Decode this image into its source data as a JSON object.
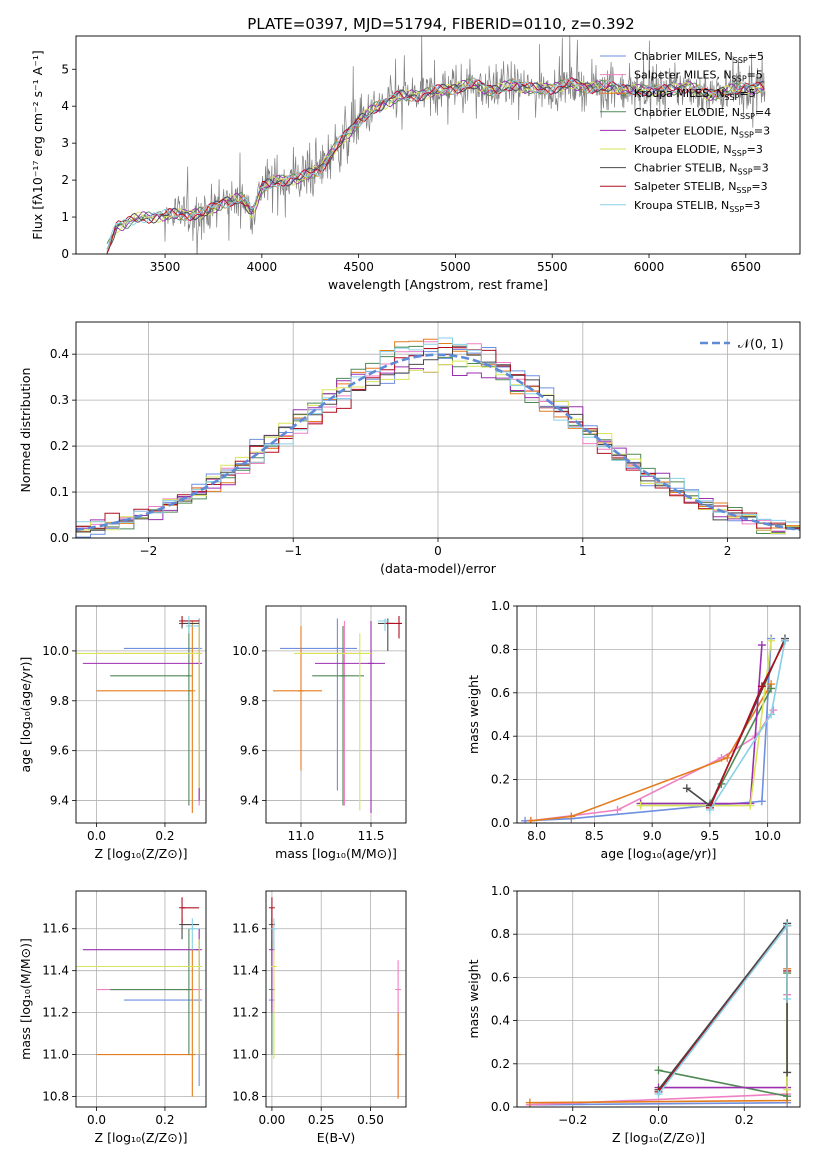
{
  "figure_title": "PLATE=0397, MJD=51794, FIBERID=0110, z=0.392",
  "colors": {
    "Chabrier MILES": "#6f8fe0",
    "Salpeter MILES": "#f07fc4",
    "Kroupa MILES": "#e57c1c",
    "Chabrier ELODIE": "#4f8a55",
    "Salpeter ELODIE": "#9b2fb0",
    "Kroupa ELODIE": "#d9e35a",
    "Chabrier STELIB": "#4a4a4a",
    "Salpeter STELIB": "#b01020",
    "Kroupa STELIB": "#88d0e6",
    "normal": "#5e8ad6",
    "data": "#808080"
  },
  "chart_data": [
    {
      "id": "spectrum",
      "type": "line",
      "xlabel": "wavelength [Angstrom, rest frame]",
      "ylabel": "Flux [fλ10⁻¹⁷ erg cm⁻² s⁻¹ A⁻¹]",
      "xlim": [
        3040,
        6780
      ],
      "ylim": [
        0,
        5.9
      ],
      "xticks": [
        "3500",
        "4000",
        "4500",
        "5000",
        "5500",
        "6000",
        "6500"
      ],
      "yticks": [
        "0",
        "1",
        "2",
        "3",
        "4",
        "5"
      ],
      "legend_position": "upper-right",
      "legend": [
        {
          "label": "Chabrier MILES, N",
          "sub": "SSP",
          "suffix": "=5"
        },
        {
          "label": "Salpeter MILES, N",
          "sub": "SSP",
          "suffix": "=5"
        },
        {
          "label": "Kroupa MILES, N",
          "sub": "SSP",
          "suffix": "=5"
        },
        {
          "label": "Chabrier ELODIE, N",
          "sub": "SSP",
          "suffix": "=4"
        },
        {
          "label": "Salpeter ELODIE, N",
          "sub": "SSP",
          "suffix": "=3"
        },
        {
          "label": "Kroupa ELODIE, N",
          "sub": "SSP",
          "suffix": "=3"
        },
        {
          "label": "Chabrier STELIB, N",
          "sub": "SSP",
          "suffix": "=3"
        },
        {
          "label": "Salpeter STELIB, N",
          "sub": "SSP",
          "suffix": "=3"
        },
        {
          "label": "Kroupa STELIB, N",
          "sub": "SSP",
          "suffix": "=3"
        }
      ],
      "continuum": [
        [
          3200,
          0.1
        ],
        [
          3250,
          0.75
        ],
        [
          3350,
          0.95
        ],
        [
          3500,
          1.05
        ],
        [
          3700,
          1.1
        ],
        [
          3800,
          1.4
        ],
        [
          3900,
          1.5
        ],
        [
          3950,
          1.1
        ],
        [
          4000,
          1.8
        ],
        [
          4100,
          2.0
        ],
        [
          4200,
          2.05
        ],
        [
          4300,
          2.3
        ],
        [
          4400,
          3.0
        ],
        [
          4500,
          3.6
        ],
        [
          4600,
          4.0
        ],
        [
          4700,
          4.25
        ],
        [
          4800,
          4.3
        ],
        [
          4900,
          4.4
        ],
        [
          5000,
          4.5
        ],
        [
          5100,
          4.6
        ],
        [
          5200,
          4.4
        ],
        [
          5300,
          4.6
        ],
        [
          5400,
          4.45
        ],
        [
          5500,
          4.5
        ],
        [
          5600,
          4.6
        ],
        [
          5700,
          4.5
        ],
        [
          5800,
          4.55
        ],
        [
          5900,
          4.4
        ],
        [
          6000,
          4.45
        ],
        [
          6100,
          4.4
        ],
        [
          6200,
          4.55
        ],
        [
          6300,
          4.3
        ],
        [
          6400,
          4.4
        ],
        [
          6500,
          4.5
        ],
        [
          6600,
          4.5
        ]
      ]
    },
    {
      "id": "residuals",
      "type": "line",
      "xlabel": "(data-model)/error",
      "ylabel": "Normed distribution",
      "xlim": [
        -2.5,
        2.5
      ],
      "ylim": [
        0,
        0.47
      ],
      "xticks": [
        "−2",
        "−1",
        "0",
        "1",
        "2"
      ],
      "yticks": [
        "0.0",
        "0.1",
        "0.2",
        "0.3",
        "0.4"
      ],
      "legend_position": "upper-right",
      "legend_label": "𝒩(0, 1)",
      "bin_width": 0.1
    },
    {
      "id": "age-vs-Z",
      "type": "scatter",
      "xlabel": "Z [log₁₀(Z/Z⊙)]",
      "ylabel": "age  [log₁₀(age/yr)]",
      "xlim": [
        -0.06,
        0.32
      ],
      "ylim": [
        9.31,
        10.18
      ],
      "xticks": [
        "0.0",
        "0.2"
      ],
      "yticks": [
        "9.4",
        "9.6",
        "9.8",
        "10.0"
      ],
      "points": [
        {
          "m": "Chabrier MILES",
          "x": 0.3,
          "y": 10.01,
          "xl": 0.08,
          "xh": 0.3,
          "yl": 9.44,
          "yh": 10.13
        },
        {
          "m": "Salpeter MILES",
          "x": 0.3,
          "y": 9.99,
          "xl": 0.0,
          "xh": 0.3,
          "yl": 9.38,
          "yh": 10.12
        },
        {
          "m": "Kroupa MILES",
          "x": 0.28,
          "y": 9.84,
          "xl": 0.0,
          "xh": 0.28,
          "yl": 9.35,
          "yh": 10.12
        },
        {
          "m": "Chabrier ELODIE",
          "x": 0.27,
          "y": 9.9,
          "xl": 0.04,
          "xh": 0.27,
          "yl": 9.38,
          "yh": 10.12
        },
        {
          "m": "Salpeter ELODIE",
          "x": 0.3,
          "y": 9.95,
          "xl": -0.04,
          "xh": 0.3,
          "yl": 9.4,
          "yh": 10.12
        },
        {
          "m": "Kroupa ELODIE",
          "x": 0.3,
          "y": 9.99,
          "xl": -0.06,
          "xh": 0.3,
          "yl": 9.45,
          "yh": 10.12
        },
        {
          "m": "Chabrier STELIB",
          "x": 0.25,
          "y": 10.11,
          "xl": 0.25,
          "xh": 0.3,
          "yl": 10.09,
          "yh": 10.13
        },
        {
          "m": "Salpeter STELIB",
          "x": 0.25,
          "y": 10.12,
          "xl": 0.25,
          "xh": 0.3,
          "yl": 10.1,
          "yh": 10.14
        },
        {
          "m": "Kroupa STELIB",
          "x": 0.27,
          "y": 10.1,
          "xl": 0.27,
          "xh": 0.3,
          "yl": 10.07,
          "yh": 10.14
        }
      ]
    },
    {
      "id": "age-vs-mass",
      "type": "scatter",
      "xlabel": "mass [log₁₀(M/M⊙)]",
      "ylabel": "",
      "xlim": [
        10.75,
        11.75
      ],
      "ylim": [
        9.31,
        10.18
      ],
      "xticks": [
        "11.0",
        "11.5"
      ],
      "yticks": [
        "9.4",
        "9.6",
        "9.8",
        "10.0"
      ],
      "points": [
        {
          "m": "Chabrier MILES",
          "x": 11.26,
          "y": 10.01,
          "xl": 10.85,
          "xh": 11.4,
          "yl": 9.44,
          "yh": 10.13
        },
        {
          "m": "Salpeter MILES",
          "x": 11.31,
          "y": 9.99,
          "xl": 11.0,
          "xh": 11.41,
          "yl": 9.38,
          "yh": 10.12
        },
        {
          "m": "Kroupa MILES",
          "x": 11.0,
          "y": 9.84,
          "xl": 10.8,
          "xh": 11.15,
          "yl": 9.52,
          "yh": 10.1
        },
        {
          "m": "Chabrier ELODIE",
          "x": 11.3,
          "y": 9.9,
          "xl": 11.08,
          "xh": 11.45,
          "yl": 9.38,
          "yh": 10.1
        },
        {
          "m": "Salpeter ELODIE",
          "x": 11.5,
          "y": 9.95,
          "xl": 11.1,
          "xh": 11.6,
          "yl": 9.35,
          "yh": 10.12
        },
        {
          "m": "Kroupa ELODIE",
          "x": 11.42,
          "y": 9.99,
          "xl": 10.95,
          "xh": 11.5,
          "yl": 9.36,
          "yh": 10.07
        },
        {
          "m": "Chabrier STELIB",
          "x": 11.62,
          "y": 10.11,
          "xl": 11.55,
          "xh": 11.66,
          "yl": 10.0,
          "yh": 10.13
        },
        {
          "m": "Salpeter STELIB",
          "x": 11.7,
          "y": 10.11,
          "xl": 11.6,
          "xh": 11.72,
          "yl": 10.05,
          "yh": 10.14
        },
        {
          "m": "Kroupa STELIB",
          "x": 11.6,
          "y": 10.12,
          "xl": 11.55,
          "xh": 11.63,
          "yl": 10.08,
          "yh": 10.13
        }
      ]
    },
    {
      "id": "weight-vs-age",
      "type": "line",
      "xlabel": "age  [log₁₀(age/yr)]",
      "ylabel": "mass weight",
      "xlim": [
        7.83,
        10.28
      ],
      "ylim": [
        0,
        1
      ],
      "xticks": [
        "8.0",
        "8.5",
        "9.0",
        "9.5",
        "10.0"
      ],
      "yticks": [
        "0.0",
        "0.2",
        "0.4",
        "0.6",
        "0.8",
        "1.0"
      ],
      "series": [
        {
          "m": "Chabrier MILES",
          "x": [
            7.9,
            8.3,
            9.5,
            9.95,
            10.03
          ],
          "y": [
            0.01,
            0.02,
            0.08,
            0.1,
            0.85
          ]
        },
        {
          "m": "Salpeter MILES",
          "x": [
            7.95,
            8.7,
            9.6,
            9.9,
            10.05
          ],
          "y": [
            0.01,
            0.06,
            0.3,
            0.4,
            0.52
          ]
        },
        {
          "m": "Kroupa MILES",
          "x": [
            7.95,
            8.3,
            9.65,
            10.03
          ],
          "y": [
            0.01,
            0.03,
            0.3,
            0.64
          ]
        },
        {
          "m": "Chabrier ELODIE",
          "x": [
            8.9,
            9.5,
            9.6,
            10.03
          ],
          "y": [
            0.09,
            0.09,
            0.18,
            0.62
          ]
        },
        {
          "m": "Salpeter ELODIE",
          "x": [
            8.9,
            9.85,
            9.95
          ],
          "y": [
            0.09,
            0.09,
            0.82
          ]
        },
        {
          "m": "Kroupa ELODIE",
          "x": [
            8.9,
            9.85,
            10.03
          ],
          "y": [
            0.08,
            0.08,
            0.84
          ]
        },
        {
          "m": "Chabrier STELIB",
          "x": [
            9.3,
            9.5,
            10.15
          ],
          "y": [
            0.16,
            0.08,
            0.85
          ]
        },
        {
          "m": "Salpeter STELIB",
          "x": [
            9.5,
            9.95,
            10.15
          ],
          "y": [
            0.07,
            0.63,
            0.84
          ]
        },
        {
          "m": "Kroupa STELIB",
          "x": [
            9.5,
            10.03,
            10.15
          ],
          "y": [
            0.06,
            0.5,
            0.84
          ]
        }
      ]
    },
    {
      "id": "mass-vs-Z",
      "type": "scatter",
      "xlabel": "Z [log₁₀(Z/Z⊙)]",
      "ylabel": "mass [log₁₀(M/M⊙)]",
      "xlim": [
        -0.06,
        0.32
      ],
      "ylim": [
        10.75,
        11.78
      ],
      "xticks": [
        "0.0",
        "0.2"
      ],
      "yticks": [
        "10.8",
        "11.0",
        "11.2",
        "11.4",
        "11.6"
      ],
      "points": [
        {
          "m": "Chabrier MILES",
          "x": 0.3,
          "y": 11.26,
          "xl": 0.08,
          "xh": 0.3,
          "yl": 10.85,
          "yh": 11.55
        },
        {
          "m": "Salpeter MILES",
          "x": 0.3,
          "y": 11.31,
          "xl": 0.0,
          "xh": 0.3,
          "yl": 11.0,
          "yh": 11.45
        },
        {
          "m": "Kroupa MILES",
          "x": 0.28,
          "y": 11.0,
          "xl": 0.0,
          "xh": 0.28,
          "yl": 10.8,
          "yh": 11.5
        },
        {
          "m": "Chabrier ELODIE",
          "x": 0.27,
          "y": 11.31,
          "xl": 0.04,
          "xh": 0.27,
          "yl": 11.0,
          "yh": 11.6
        },
        {
          "m": "Salpeter ELODIE",
          "x": 0.3,
          "y": 11.5,
          "xl": -0.04,
          "xh": 0.3,
          "yl": 11.0,
          "yh": 11.6
        },
        {
          "m": "Kroupa ELODIE",
          "x": 0.3,
          "y": 11.42,
          "xl": -0.06,
          "xh": 0.3,
          "yl": 11.0,
          "yh": 11.55
        },
        {
          "m": "Chabrier STELIB",
          "x": 0.25,
          "y": 11.62,
          "xl": 0.25,
          "xh": 0.3,
          "yl": 11.55,
          "yh": 11.65
        },
        {
          "m": "Salpeter STELIB",
          "x": 0.25,
          "y": 11.7,
          "xl": 0.25,
          "xh": 0.3,
          "yl": 11.62,
          "yh": 11.75
        },
        {
          "m": "Kroupa STELIB",
          "x": 0.28,
          "y": 11.6,
          "xl": 0.27,
          "xh": 0.3,
          "yl": 11.5,
          "yh": 11.65
        }
      ]
    },
    {
      "id": "mass-vs-EBV",
      "type": "scatter",
      "xlabel": "E(B-V)",
      "ylabel": "",
      "xlim": [
        -0.03,
        0.68
      ],
      "ylim": [
        10.75,
        11.78
      ],
      "xticks": [
        "0.00",
        "0.25",
        "0.50"
      ],
      "yticks": [
        "10.8",
        "11.0",
        "11.2",
        "11.4",
        "11.6"
      ],
      "points": [
        {
          "m": "Chabrier MILES",
          "x": 0.0,
          "y": 11.26,
          "yl": 11.0,
          "yh": 11.55
        },
        {
          "m": "Salpeter MILES",
          "x": 0.64,
          "y": 11.31,
          "yl": 10.8,
          "yh": 11.45
        },
        {
          "m": "Kroupa MILES",
          "x": 0.64,
          "y": 11.0,
          "yl": 10.79,
          "yh": 11.2
        },
        {
          "m": "Chabrier ELODIE",
          "x": 0.0,
          "y": 11.31,
          "yl": 11.0,
          "yh": 11.6
        },
        {
          "m": "Salpeter ELODIE",
          "x": 0.0,
          "y": 11.5,
          "yl": 11.2,
          "yh": 11.65
        },
        {
          "m": "Kroupa ELODIE",
          "x": 0.01,
          "y": 11.42,
          "yl": 10.98,
          "yh": 11.55
        },
        {
          "m": "Chabrier STELIB",
          "x": 0.0,
          "y": 11.62,
          "yl": 11.5,
          "yh": 11.7
        },
        {
          "m": "Salpeter STELIB",
          "x": 0.0,
          "y": 11.7,
          "yl": 11.6,
          "yh": 11.75
        },
        {
          "m": "Kroupa STELIB",
          "x": 0.01,
          "y": 11.6,
          "yl": 11.5,
          "yh": 11.65
        }
      ]
    },
    {
      "id": "weight-vs-Z",
      "type": "line",
      "xlabel": "Z [log₁₀(Z/Z⊙)]",
      "ylabel": "mass weight",
      "xlim": [
        -0.33,
        0.33
      ],
      "ylim": [
        0,
        1
      ],
      "xticks": [
        "−0.2",
        "0.0",
        "0.2"
      ],
      "yticks": [
        "0.0",
        "0.2",
        "0.4",
        "0.6",
        "0.8",
        "1.0"
      ],
      "series": [
        {
          "m": "Chabrier MILES",
          "x": [
            -0.3,
            0.3,
            0.3
          ],
          "y": [
            0.01,
            0.02,
            0.85
          ]
        },
        {
          "m": "Salpeter MILES",
          "x": [
            -0.3,
            0.3,
            0.3
          ],
          "y": [
            0.01,
            0.06,
            0.52
          ]
        },
        {
          "m": "Kroupa MILES",
          "x": [
            -0.3,
            0.3,
            0.3
          ],
          "y": [
            0.02,
            0.03,
            0.64
          ]
        },
        {
          "m": "Chabrier ELODIE",
          "x": [
            0.0,
            0.3,
            0.3
          ],
          "y": [
            0.17,
            0.05,
            0.62
          ]
        },
        {
          "m": "Salpeter ELODIE",
          "x": [
            0.0,
            0.3
          ],
          "y": [
            0.09,
            0.09
          ]
        },
        {
          "m": "Kroupa ELODIE",
          "x": [
            0.0,
            0.3,
            0.3
          ],
          "y": [
            0.08,
            0.84,
            0.08
          ]
        },
        {
          "m": "Chabrier STELIB",
          "x": [
            0.0,
            0.3,
            0.3
          ],
          "y": [
            0.08,
            0.85,
            0.16
          ]
        },
        {
          "m": "Salpeter STELIB",
          "x": [
            0.0,
            0.3,
            0.3
          ],
          "y": [
            0.07,
            0.84,
            0.63
          ]
        },
        {
          "m": "Kroupa STELIB",
          "x": [
            0.0,
            0.3,
            0.3
          ],
          "y": [
            0.06,
            0.84,
            0.5
          ]
        }
      ]
    }
  ]
}
